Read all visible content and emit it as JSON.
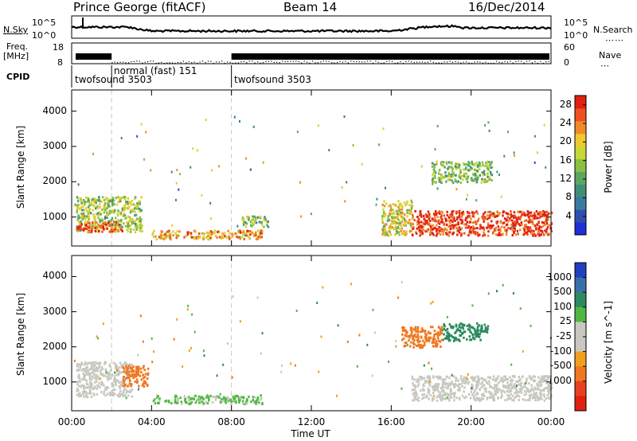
{
  "header": {
    "station": "Prince George (fitACF)",
    "beam": "Beam 14",
    "date": "16/Dec/2014"
  },
  "top_panels": {
    "nsky_label": "N.Sky",
    "nsearch_label": "N.Search",
    "noise_ticks": [
      "10^5",
      "10^0"
    ],
    "freq_label": "Freq.",
    "freq_unit": "[MHz]",
    "freq_ticks": [
      "18",
      "8"
    ],
    "nave_label": "Nave",
    "nave_ticks": [
      "60",
      "0"
    ],
    "cpid_label": "CPID",
    "cpid_segments": [
      {
        "name": "twofsound 3503",
        "start_hour": 0,
        "end_hour": 2
      },
      {
        "name": "normal (fast) 151",
        "start_hour": 2,
        "end_hour": 8
      },
      {
        "name": "twofsound 3503",
        "start_hour": 8,
        "end_hour": 24
      }
    ]
  },
  "chart_data": [
    {
      "type": "heatmap",
      "title": "",
      "xlabel": "Time UT",
      "ylabel": "Slant Range [km]",
      "xlim": [
        0,
        24
      ],
      "ylim": [
        180,
        4600
      ],
      "x_ticks": [
        "00:00",
        "04:00",
        "08:00",
        "12:00",
        "16:00",
        "20:00",
        "00:00"
      ],
      "y_ticks": [
        1000,
        2000,
        3000,
        4000
      ],
      "colorbar": {
        "label": "Power [dB]",
        "ticks": [
          4,
          8,
          12,
          16,
          20,
          24,
          28
        ],
        "range": [
          0,
          30
        ],
        "colors": [
          "#2030d8",
          "#2f4fb0",
          "#3a7aa0",
          "#3f8f78",
          "#5aa860",
          "#8cc040",
          "#c8d838",
          "#f0c830",
          "#f08a28",
          "#ee5020",
          "#e02010"
        ]
      },
      "series": [
        {
          "hours": [
            0.2,
            3.5
          ],
          "range_km": [
            600,
            1600
          ],
          "level": 16
        },
        {
          "hours": [
            0.2,
            2.5
          ],
          "range_km": [
            600,
            900
          ],
          "level": 26
        },
        {
          "hours": [
            4.0,
            9.5
          ],
          "range_km": [
            400,
            650
          ],
          "level": 22
        },
        {
          "hours": [
            15.5,
            17.0
          ],
          "range_km": [
            500,
            1500
          ],
          "level": 18
        },
        {
          "hours": [
            17.0,
            24.0
          ],
          "range_km": [
            500,
            1200
          ],
          "level": 28
        },
        {
          "hours": [
            18.0,
            21.0
          ],
          "range_km": [
            2000,
            2600
          ],
          "level": 14
        },
        {
          "hours": [
            8.5,
            9.8
          ],
          "range_km": [
            750,
            1050
          ],
          "level": 14
        }
      ]
    },
    {
      "type": "heatmap",
      "title": "",
      "xlabel": "Time UT",
      "ylabel": "Slant Range [km]",
      "xlim": [
        0,
        24
      ],
      "ylim": [
        180,
        4600
      ],
      "x_ticks": [
        "00:00",
        "04:00",
        "08:00",
        "12:00",
        "16:00",
        "20:00",
        "00:00"
      ],
      "y_ticks": [
        1000,
        2000,
        3000,
        4000
      ],
      "colorbar": {
        "label": "Velocity [m s^-1]",
        "ticks": [
          "1000",
          "500",
          "100",
          "25",
          "-25",
          "-100",
          "-500",
          "-1000"
        ],
        "colors": [
          "#2040c0",
          "#3a70a8",
          "#2e8a60",
          "#50b840",
          "#c8c8c0",
          "#c8c8c0",
          "#f0a020",
          "#f07820",
          "#e84020",
          "#e02010"
        ]
      },
      "series": [
        {
          "hours": [
            0.2,
            3.0
          ],
          "range_km": [
            600,
            1600
          ],
          "level": 0
        },
        {
          "hours": [
            2.5,
            3.8
          ],
          "range_km": [
            900,
            1500
          ],
          "level": -200
        },
        {
          "hours": [
            4.0,
            9.5
          ],
          "range_km": [
            400,
            650
          ],
          "level": 30
        },
        {
          "hours": [
            17.0,
            24.0
          ],
          "range_km": [
            500,
            1200
          ],
          "level": 0
        },
        {
          "hours": [
            18.5,
            20.8
          ],
          "range_km": [
            2200,
            2700
          ],
          "level": 300
        },
        {
          "hours": [
            16.5,
            18.5
          ],
          "range_km": [
            2000,
            2600
          ],
          "level": -200
        }
      ]
    }
  ]
}
